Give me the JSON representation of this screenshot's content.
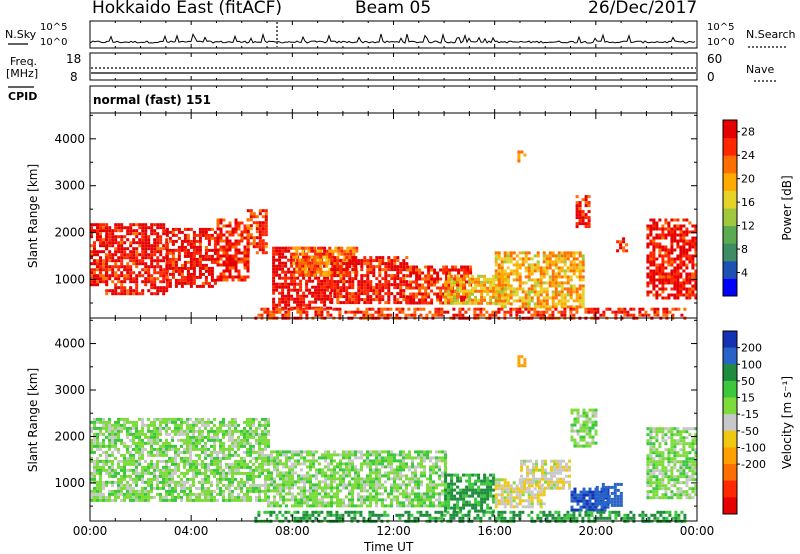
{
  "header": {
    "station": "Hokkaido East (fitACF)",
    "beam": "Beam 05",
    "date": "26/Dec/2017"
  },
  "sky_panel": {
    "label": "N.Sky",
    "right_label": "N.Search",
    "left_ticks": [
      "10^5",
      "10^0"
    ],
    "right_ticks": [
      "10^5",
      "10^0"
    ]
  },
  "freq_panel": {
    "label_line1": "Freq.",
    "label_line2": "[MHz]",
    "left_ticks": [
      "18",
      "8"
    ],
    "right_label": "Nave",
    "right_ticks": [
      "60",
      "0"
    ]
  },
  "cpid_panel": {
    "label": "CPID",
    "value": "normal (fast) 151"
  },
  "chart_data": [
    {
      "type": "heatmap",
      "quantity": "Power",
      "ylabel": "Slant Range [km]",
      "ylim": [
        180,
        4550
      ],
      "yticks": [
        1000,
        2000,
        3000,
        4000
      ],
      "xlim_hours": [
        0,
        24
      ],
      "colorbar": {
        "label": "Power [dB]",
        "ticks": [
          4,
          8,
          12,
          16,
          20,
          24,
          28
        ],
        "range": [
          0,
          30
        ],
        "colors": [
          "#0000ff",
          "#1e50b4",
          "#3c8c64",
          "#5aaa50",
          "#a0c83c",
          "#e6d228",
          "#ffaa00",
          "#ff6e00",
          "#ff2800",
          "#e60000"
        ]
      },
      "echo_regions": [
        {
          "t": [
            0.0,
            0.6
          ],
          "r": [
            900,
            2200
          ],
          "level": 27
        },
        {
          "t": [
            0.6,
            3.0
          ],
          "r": [
            700,
            2200
          ],
          "level": 28
        },
        {
          "t": [
            3.0,
            5.0
          ],
          "r": [
            850,
            2100
          ],
          "level": 28
        },
        {
          "t": [
            5.0,
            6.2
          ],
          "r": [
            1000,
            2300
          ],
          "level": 26
        },
        {
          "t": [
            6.2,
            7.0
          ],
          "r": [
            1600,
            2500
          ],
          "level": 25
        },
        {
          "t": [
            7.2,
            9.5
          ],
          "r": [
            400,
            1700
          ],
          "level": 29
        },
        {
          "t": [
            8.0,
            10.5
          ],
          "r": [
            1100,
            1700
          ],
          "level": 22
        },
        {
          "t": [
            9.5,
            12.5
          ],
          "r": [
            500,
            1500
          ],
          "level": 28
        },
        {
          "t": [
            12.5,
            15.0
          ],
          "r": [
            500,
            1300
          ],
          "level": 26
        },
        {
          "t": [
            14.0,
            16.5
          ],
          "r": [
            500,
            1100
          ],
          "level": 18
        },
        {
          "t": [
            16.0,
            19.5
          ],
          "r": [
            400,
            1600
          ],
          "level": 19
        },
        {
          "t": [
            6.5,
            23.5
          ],
          "r": [
            200,
            400
          ],
          "level": 26
        },
        {
          "t": [
            16.9,
            17.2
          ],
          "r": [
            3500,
            3750
          ],
          "level": 21
        },
        {
          "t": [
            19.2,
            19.7
          ],
          "r": [
            2100,
            2800
          ],
          "level": 27
        },
        {
          "t": [
            20.8,
            21.2
          ],
          "r": [
            1600,
            1900
          ],
          "level": 26
        },
        {
          "t": [
            22.0,
            24.0
          ],
          "r": [
            600,
            2300
          ],
          "level": 28
        }
      ]
    },
    {
      "type": "heatmap",
      "quantity": "Velocity",
      "ylabel": "Slant Range [km]",
      "xlabel": "Time UT",
      "ylim": [
        180,
        4550
      ],
      "yticks": [
        1000,
        2000,
        3000,
        4000
      ],
      "xlim_hours": [
        0,
        24
      ],
      "xticks": [
        "00:00",
        "04:00",
        "08:00",
        "12:00",
        "16:00",
        "20:00",
        "00:00"
      ],
      "colorbar": {
        "label": "Velocity [m s^-1]",
        "ticks": [
          200,
          100,
          50,
          15,
          -15,
          -50,
          -100,
          -200
        ],
        "colors": [
          "#1432b4",
          "#2864c8",
          "#1e8c3c",
          "#3cc83c",
          "#7ddc3c",
          "#c8c8c8",
          "#f0c814",
          "#ffa000",
          "#ff6e00",
          "#ff2800",
          "#e60000"
        ]
      },
      "echo_regions": [
        {
          "t": [
            0.0,
            7.0
          ],
          "r": [
            600,
            2400
          ],
          "velocity": 0
        },
        {
          "t": [
            7.0,
            14.0
          ],
          "r": [
            500,
            1700
          ],
          "velocity": 0
        },
        {
          "t": [
            14.0,
            16.0
          ],
          "r": [
            400,
            1200
          ],
          "velocity": 60
        },
        {
          "t": [
            16.0,
            18.0
          ],
          "r": [
            500,
            1100
          ],
          "velocity": -40
        },
        {
          "t": [
            17.0,
            19.0
          ],
          "r": [
            900,
            1500
          ],
          "velocity": -40
        },
        {
          "t": [
            19.0,
            20.5
          ],
          "r": [
            400,
            900
          ],
          "velocity": 200
        },
        {
          "t": [
            20.0,
            21.0
          ],
          "r": [
            500,
            1000
          ],
          "velocity": 150
        },
        {
          "t": [
            6.5,
            23.5
          ],
          "r": [
            200,
            400
          ],
          "velocity": 60
        },
        {
          "t": [
            16.9,
            17.2
          ],
          "r": [
            3500,
            3750
          ],
          "velocity": -180
        },
        {
          "t": [
            19.0,
            20.0
          ],
          "r": [
            1800,
            2600
          ],
          "velocity": 0
        },
        {
          "t": [
            22.0,
            24.0
          ],
          "r": [
            700,
            2200
          ],
          "velocity": 0
        }
      ]
    }
  ],
  "footer": {
    "xlabel": "Time UT"
  }
}
